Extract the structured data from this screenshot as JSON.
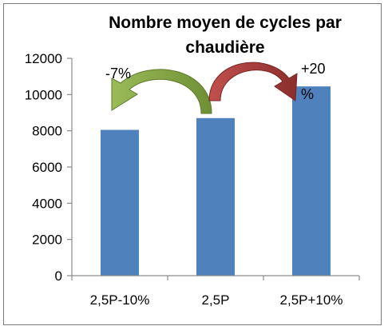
{
  "chart_data": {
    "type": "bar",
    "title_lines": [
      "Nombre moyen de cycles par",
      "chaudière"
    ],
    "categories": [
      "2,5P-10%",
      "2,5P",
      "2,5P+10%"
    ],
    "series": [
      {
        "values": [
          8050,
          8700,
          10450
        ],
        "color": "#4f81bd"
      }
    ],
    "ylim": [
      0,
      12000
    ],
    "yticks": [
      0,
      2000,
      4000,
      6000,
      8000,
      10000,
      12000
    ],
    "grid": false,
    "legend": "none",
    "annotations": [
      {
        "lines": [
          "-7%"
        ],
        "arrow_color": "#77933c",
        "from": "2,5P",
        "to": "2,5P-10%"
      },
      {
        "lines": [
          "+20",
          "%"
        ],
        "arrow_color": "#953735",
        "from": "2,5P",
        "to": "2,5P+10%"
      }
    ]
  }
}
